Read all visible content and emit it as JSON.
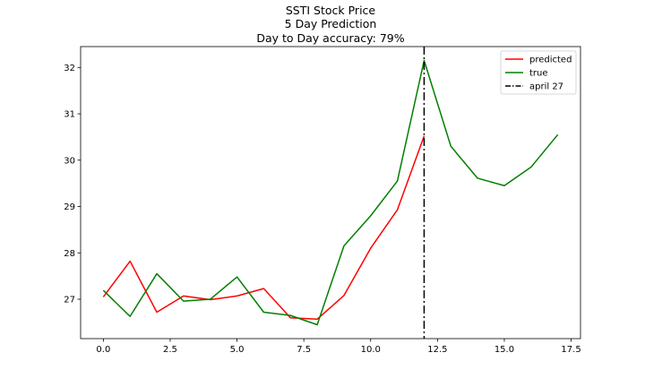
{
  "chart_data": {
    "type": "line",
    "title": "SSTI Stock Price",
    "subtitle": "5 Day Prediction",
    "accuracy_text": "Day to Day accuracy: 79%",
    "xlabel": "",
    "ylabel": "",
    "xlim": [
      -0.85,
      17.85
    ],
    "ylim": [
      26.15,
      32.45
    ],
    "xticks": [
      0.0,
      2.5,
      5.0,
      7.5,
      10.0,
      12.5,
      15.0,
      17.5
    ],
    "xtick_labels": [
      "0.0",
      "2.5",
      "5.0",
      "7.5",
      "10.0",
      "12.5",
      "15.0",
      "17.5"
    ],
    "yticks": [
      27,
      28,
      29,
      30,
      31,
      32
    ],
    "ytick_labels": [
      "27",
      "28",
      "29",
      "30",
      "31",
      "32"
    ],
    "grid": false,
    "legend_position": "top-right",
    "series": [
      {
        "name": "predicted",
        "color": "#ff0000",
        "x": [
          0,
          1,
          2,
          3,
          4,
          5,
          6,
          7,
          8,
          9,
          10,
          11,
          12
        ],
        "values": [
          27.05,
          27.82,
          26.72,
          27.07,
          26.99,
          27.07,
          27.23,
          26.6,
          26.57,
          27.08,
          28.1,
          28.93,
          30.52
        ]
      },
      {
        "name": "true",
        "color": "#008000",
        "x": [
          0,
          1,
          2,
          3,
          4,
          5,
          6,
          7,
          8,
          9,
          10,
          11,
          12,
          13,
          14,
          15,
          16,
          17
        ],
        "values": [
          27.19,
          26.63,
          27.55,
          26.96,
          27.0,
          27.48,
          26.72,
          26.65,
          26.45,
          28.15,
          28.8,
          29.55,
          32.15,
          30.3,
          29.61,
          29.45,
          29.85,
          30.55
        ]
      }
    ],
    "vline": {
      "name": "april 27",
      "x": 12,
      "color": "#000000",
      "style": "dash-dot"
    }
  }
}
